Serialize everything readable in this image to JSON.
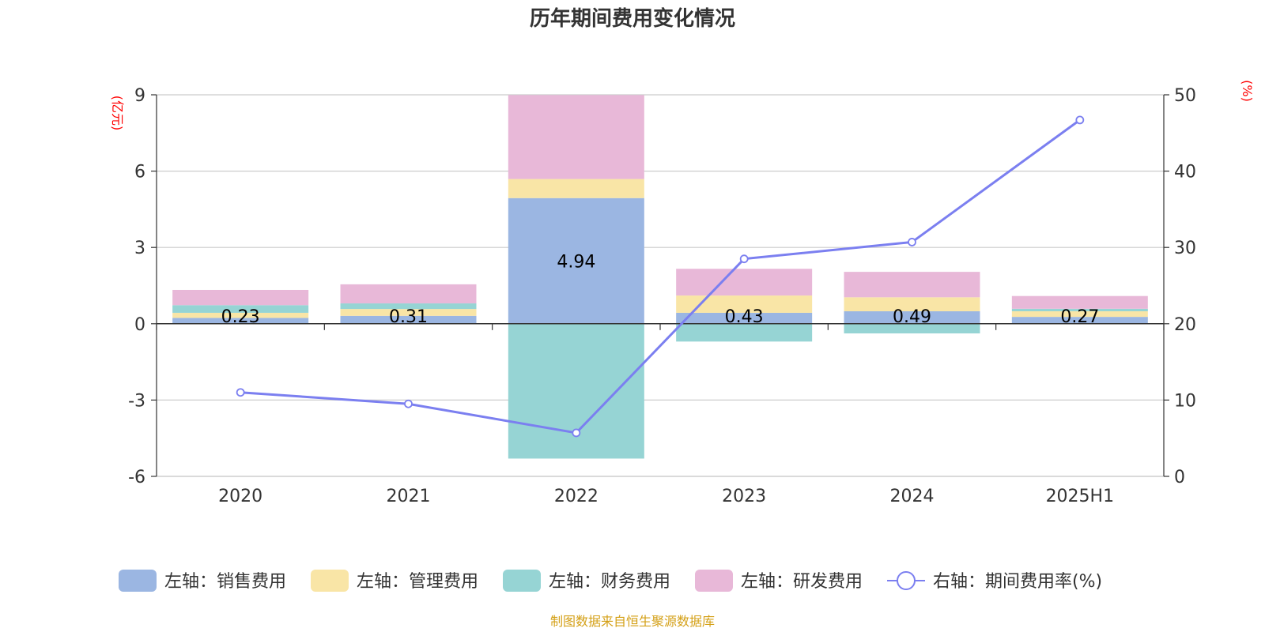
{
  "chart_data": {
    "type": "bar",
    "title": "历年期间费用变化情况",
    "categories": [
      "2020",
      "2021",
      "2022",
      "2023",
      "2024",
      "2025H1"
    ],
    "left_axis": {
      "unit": "(亿元)",
      "ylim": [
        -6,
        9
      ],
      "ticks": [
        "-6",
        "-3",
        "0",
        "3",
        "6",
        "9"
      ]
    },
    "right_axis": {
      "unit": "(%)",
      "ylim": [
        0,
        50
      ],
      "ticks": [
        "0",
        "10",
        "20",
        "30",
        "40",
        "50"
      ]
    },
    "series": [
      {
        "name": "左轴：销售费用",
        "type": "bar",
        "axis": "left",
        "color": "#9bb6e2",
        "values": [
          0.23,
          0.31,
          4.94,
          0.43,
          0.49,
          0.27
        ],
        "labels": [
          "0.23",
          "0.31",
          "4.94",
          "0.43",
          "0.49",
          "0.27"
        ]
      },
      {
        "name": "左轴：管理费用",
        "type": "bar",
        "axis": "left",
        "color": "#f9e5a6",
        "values": [
          0.2,
          0.27,
          0.75,
          0.68,
          0.55,
          0.22
        ]
      },
      {
        "name": "左轴：财务费用",
        "type": "bar",
        "axis": "left",
        "color": "#96d4d4",
        "values": [
          0.3,
          0.22,
          -5.3,
          -0.7,
          -0.38,
          0.1
        ]
      },
      {
        "name": "左轴：研发费用",
        "type": "bar",
        "axis": "left",
        "color": "#e8b8d8",
        "values": [
          0.6,
          0.75,
          3.3,
          1.05,
          1.0,
          0.5
        ]
      },
      {
        "name": "右轴：期间费用率(%)",
        "type": "line",
        "axis": "right",
        "color": "#7b7ff0",
        "values": [
          11.0,
          9.5,
          5.7,
          28.5,
          30.7,
          46.7
        ]
      }
    ],
    "grid": true,
    "legend_position": "bottom"
  },
  "footer": "制图数据来自恒生聚源数据库"
}
